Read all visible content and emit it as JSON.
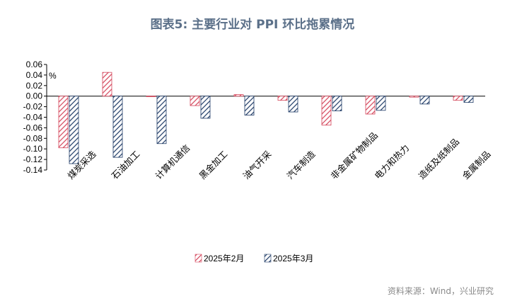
{
  "header": {
    "title": "图表5:   主要行业对 PPI 环比拖累情况"
  },
  "source": "资料来源：Wind，兴业研究",
  "chart_data": {
    "type": "bar",
    "unit_label": "%",
    "categories": [
      "煤炭采选",
      "石油加工",
      "计算机通信",
      "黑金加工",
      "油气开采",
      "汽车制造",
      "非金属矿物制品",
      "电力和热力",
      "造纸及纸制品",
      "金属制品"
    ],
    "series": [
      {
        "name": "2025年2月",
        "color": "#d4455a",
        "values": [
          -0.098,
          0.045,
          0.0,
          -0.018,
          0.003,
          -0.008,
          -0.055,
          -0.034,
          -0.002,
          -0.008
        ]
      },
      {
        "name": "2025年3月",
        "color": "#1f3b66",
        "values": [
          -0.128,
          -0.116,
          -0.09,
          -0.042,
          -0.036,
          -0.03,
          -0.028,
          -0.027,
          -0.015,
          -0.012
        ]
      }
    ],
    "ylim": [
      -0.14,
      0.06
    ],
    "yticks": [
      "0.06",
      "0.04",
      "0.02",
      "0.00",
      "-0.02",
      "-0.04",
      "-0.06",
      "-0.08",
      "-0.10",
      "-0.12",
      "-0.14"
    ],
    "grid": false,
    "legend_position": "bottom"
  }
}
